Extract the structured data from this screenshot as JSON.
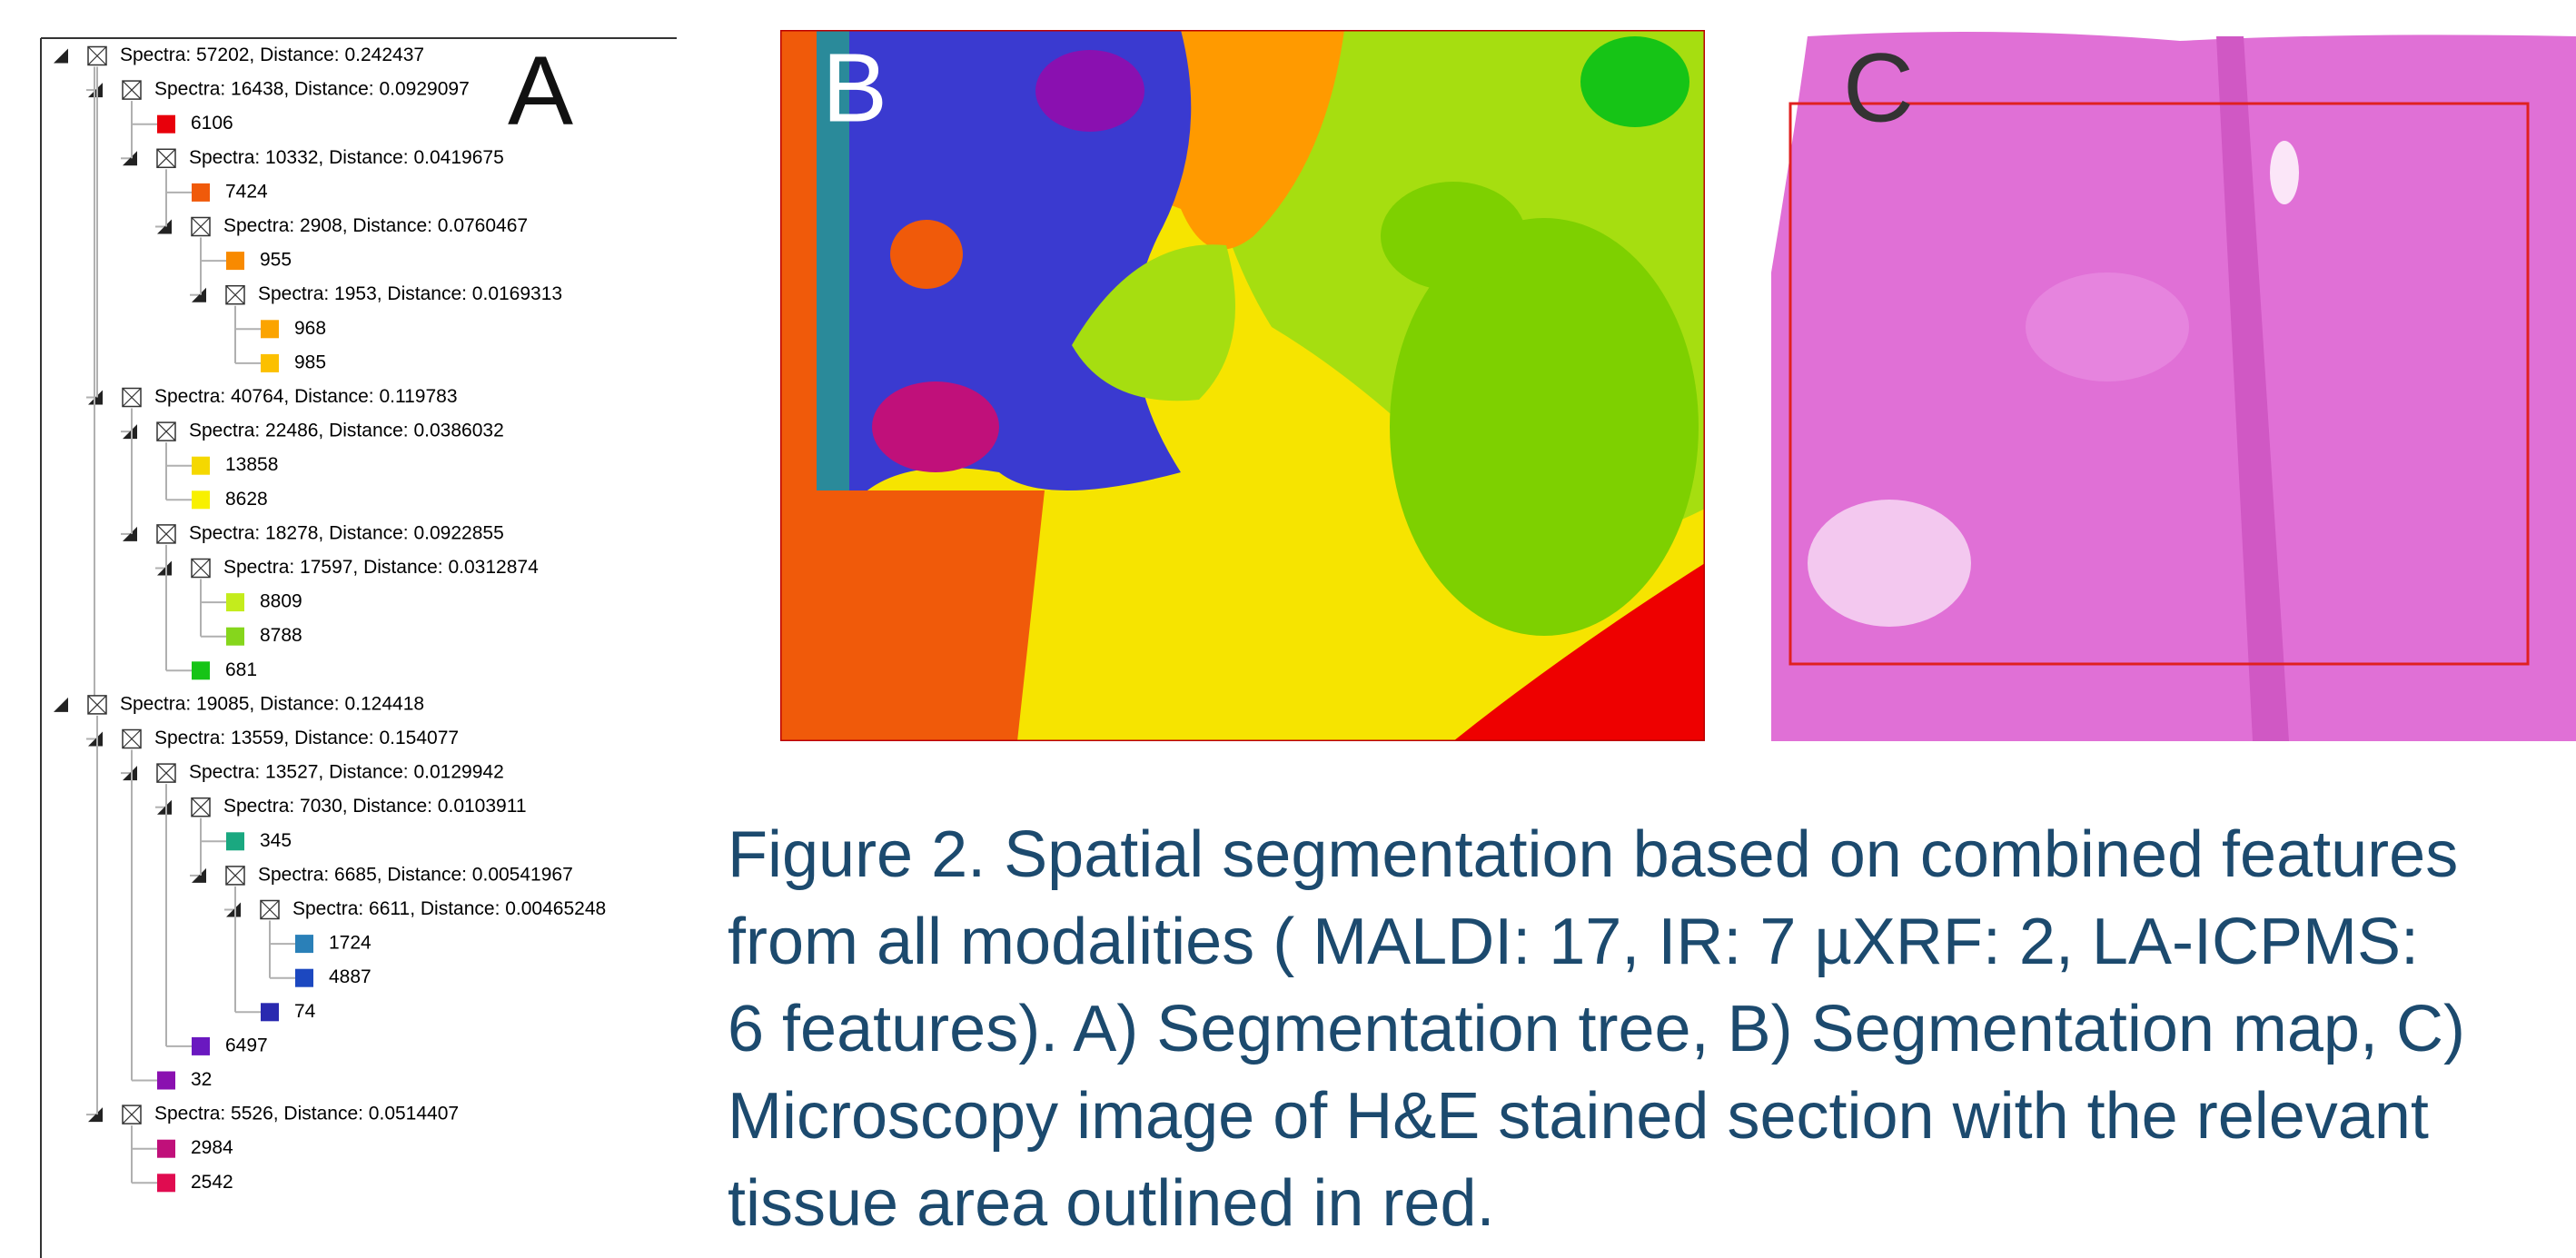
{
  "panels": {
    "a": "A",
    "b": "B",
    "c": "C"
  },
  "tree": [
    {
      "label": "Spectra: 57202, Distance: 0.242437",
      "children": [
        {
          "label": "Spectra: 16438, Distance: 0.0929097",
          "children": [
            {
              "label": "6106",
              "color": "#e8000b"
            },
            {
              "label": "Spectra: 10332, Distance: 0.0419675",
              "children": [
                {
                  "label": "7424",
                  "color": "#f05a0a"
                },
                {
                  "label": "Spectra: 2908, Distance: 0.0760467",
                  "children": [
                    {
                      "label": "955",
                      "color": "#f88a00"
                    },
                    {
                      "label": "Spectra: 1953, Distance: 0.0169313",
                      "children": [
                        {
                          "label": "968",
                          "color": "#fba400"
                        },
                        {
                          "label": "985",
                          "color": "#fcc000"
                        }
                      ]
                    }
                  ]
                }
              ]
            }
          ]
        },
        {
          "label": "Spectra: 40764, Distance: 0.119783",
          "children": [
            {
              "label": "Spectra: 22486, Distance: 0.0386032",
              "children": [
                {
                  "label": "13858",
                  "color": "#f5d800"
                },
                {
                  "label": "8628",
                  "color": "#f8f000"
                }
              ]
            },
            {
              "label": "Spectra: 18278, Distance: 0.0922855",
              "children": [
                {
                  "label": "Spectra: 17597, Distance: 0.0312874",
                  "children": [
                    {
                      "label": "8809",
                      "color": "#c4ec1c"
                    },
                    {
                      "label": "8788",
                      "color": "#86d61c"
                    }
                  ]
                },
                {
                  "label": "681",
                  "color": "#16c416"
                }
              ]
            }
          ]
        }
      ]
    },
    {
      "label": "Spectra: 19085, Distance: 0.124418",
      "children": [
        {
          "label": "Spectra: 13559, Distance: 0.154077",
          "children": [
            {
              "label": "Spectra: 13527, Distance: 0.0129942",
              "children": [
                {
                  "label": "Spectra: 7030, Distance: 0.0103911",
                  "children": [
                    {
                      "label": "345",
                      "color": "#1aa880"
                    },
                    {
                      "label": "Spectra: 6685, Distance: 0.00541967",
                      "children": [
                        {
                          "label": "Spectra: 6611, Distance: 0.00465248",
                          "children": [
                            {
                              "label": "1724",
                              "color": "#2a80b8"
                            },
                            {
                              "label": "4887",
                              "color": "#1c48c0"
                            }
                          ]
                        },
                        {
                          "label": "74",
                          "color": "#2a2ab0"
                        }
                      ]
                    }
                  ]
                },
                {
                  "label": "6497",
                  "color": "#6a18c0"
                }
              ]
            },
            {
              "label": "32",
              "color": "#8a10b0"
            }
          ]
        },
        {
          "label": "Spectra: 5526, Distance: 0.0514407",
          "children": [
            {
              "label": "2984",
              "color": "#c0107a"
            },
            {
              "label": "2542",
              "color": "#e00c50"
            }
          ]
        }
      ]
    }
  ],
  "caption": [
    "Figure 2. Spatial segmentation based on combined features",
    "from all modalities ( MALDI: 17, IR: 7 µXRF: 2, LA-ICPMS:",
    "6 features). A) Segmentation tree, B) Segmentation map, C)",
    "Microscopy image of H&E stained section with the relevant",
    "tissue area outlined in red."
  ]
}
